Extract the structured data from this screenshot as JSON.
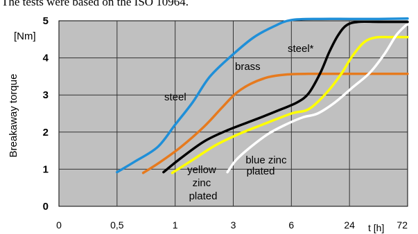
{
  "caption": "The tests were based on the ISO 10964.",
  "chart_data": {
    "type": "line",
    "title": "",
    "xlabel": "t [h]",
    "ylabel": "Breakaway torque",
    "yunit": "[Nm]",
    "categories": [
      "0",
      "0,5",
      "1",
      "3",
      "6",
      "24",
      "72"
    ],
    "ylim": [
      0,
      5
    ],
    "yticks": [
      "0",
      "1",
      "2",
      "3",
      "4",
      "5"
    ],
    "grid": true,
    "plot_background": "#c0c0c0",
    "series": [
      {
        "name": "steel",
        "color": "#1f8fd8",
        "points": [
          [
            1.0,
            0.92
          ],
          [
            1.3,
            1.2
          ],
          [
            1.7,
            1.6
          ],
          [
            2.0,
            2.2
          ],
          [
            2.3,
            2.8
          ],
          [
            2.6,
            3.5
          ],
          [
            3.0,
            4.1
          ],
          [
            3.35,
            4.55
          ],
          [
            3.7,
            4.85
          ],
          [
            4.0,
            5.02
          ],
          [
            4.5,
            5.05
          ],
          [
            5.0,
            5.05
          ],
          [
            5.5,
            5.05
          ],
          [
            6.0,
            5.06
          ]
        ]
      },
      {
        "name": "brass",
        "color": "#e67a1e",
        "points": [
          [
            1.45,
            0.9
          ],
          [
            1.75,
            1.2
          ],
          [
            2.1,
            1.6
          ],
          [
            2.5,
            2.15
          ],
          [
            2.8,
            2.65
          ],
          [
            3.05,
            3.05
          ],
          [
            3.3,
            3.3
          ],
          [
            3.6,
            3.48
          ],
          [
            3.9,
            3.55
          ],
          [
            4.3,
            3.57
          ],
          [
            5.0,
            3.57
          ],
          [
            5.5,
            3.57
          ],
          [
            6.0,
            3.57
          ]
        ]
      },
      {
        "name": "steel*",
        "color": "#000000",
        "points": [
          [
            1.8,
            0.92
          ],
          [
            2.1,
            1.3
          ],
          [
            2.5,
            1.75
          ],
          [
            2.9,
            2.05
          ],
          [
            3.4,
            2.35
          ],
          [
            3.8,
            2.6
          ],
          [
            4.1,
            2.8
          ],
          [
            4.3,
            3.05
          ],
          [
            4.5,
            3.6
          ],
          [
            4.65,
            4.15
          ],
          [
            4.8,
            4.6
          ],
          [
            4.95,
            4.88
          ],
          [
            5.15,
            4.97
          ],
          [
            5.5,
            4.97
          ],
          [
            6.0,
            4.97
          ]
        ]
      },
      {
        "name": "yellow zinc plated",
        "color": "#ffff00",
        "points": [
          [
            1.95,
            0.9
          ],
          [
            2.3,
            1.25
          ],
          [
            2.7,
            1.65
          ],
          [
            3.1,
            1.95
          ],
          [
            3.5,
            2.2
          ],
          [
            4.0,
            2.5
          ],
          [
            4.3,
            2.62
          ],
          [
            4.6,
            3.05
          ],
          [
            4.85,
            3.55
          ],
          [
            5.05,
            4.05
          ],
          [
            5.25,
            4.42
          ],
          [
            5.45,
            4.55
          ],
          [
            5.7,
            4.56
          ],
          [
            6.0,
            4.56
          ]
        ]
      },
      {
        "name": "blue zinc plated",
        "color": "#ffffff",
        "points": [
          [
            2.9,
            0.92
          ],
          [
            3.05,
            1.25
          ],
          [
            3.3,
            1.6
          ],
          [
            3.6,
            1.95
          ],
          [
            3.9,
            2.2
          ],
          [
            4.2,
            2.4
          ],
          [
            4.45,
            2.5
          ],
          [
            4.75,
            2.8
          ],
          [
            5.05,
            3.2
          ],
          [
            5.35,
            3.6
          ],
          [
            5.6,
            4.1
          ],
          [
            5.8,
            4.6
          ],
          [
            5.95,
            4.85
          ],
          [
            6.0,
            4.9
          ]
        ]
      }
    ],
    "annotations": [
      "steel",
      "brass",
      "steel*",
      "yellow zinc plated",
      "blue zinc plated"
    ]
  }
}
